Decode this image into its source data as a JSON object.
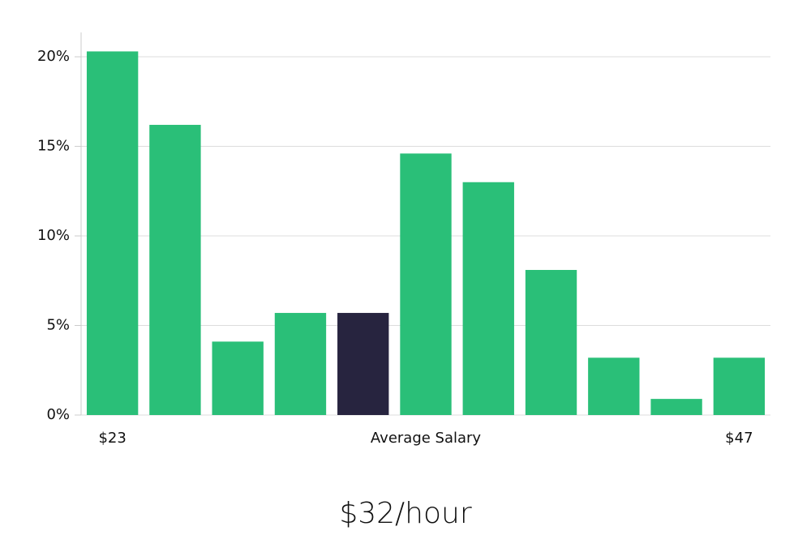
{
  "chart_data": {
    "type": "bar",
    "categories": [
      "$23",
      null,
      null,
      null,
      null,
      null,
      null,
      null,
      null,
      null,
      "$47"
    ],
    "values": [
      20.3,
      16.2,
      4.1,
      5.7,
      5.7,
      14.6,
      13.0,
      8.1,
      3.2,
      0.9,
      3.2
    ],
    "colors": [
      "#2abf78",
      "#2abf78",
      "#2abf78",
      "#2abf78",
      "#27243f",
      "#2abf78",
      "#2abf78",
      "#2abf78",
      "#2abf78",
      "#2abf78",
      "#2abf78"
    ],
    "x_label": "Average Salary",
    "subtitle": "$32/hour",
    "ylim": [
      0,
      21.36
    ],
    "yticks": [
      {
        "value": 0,
        "label": "0%"
      },
      {
        "value": 5,
        "label": "5%"
      },
      {
        "value": 10,
        "label": "10%"
      },
      {
        "value": 15,
        "label": "15%"
      },
      {
        "value": 20,
        "label": "20%"
      }
    ],
    "grid": true
  }
}
